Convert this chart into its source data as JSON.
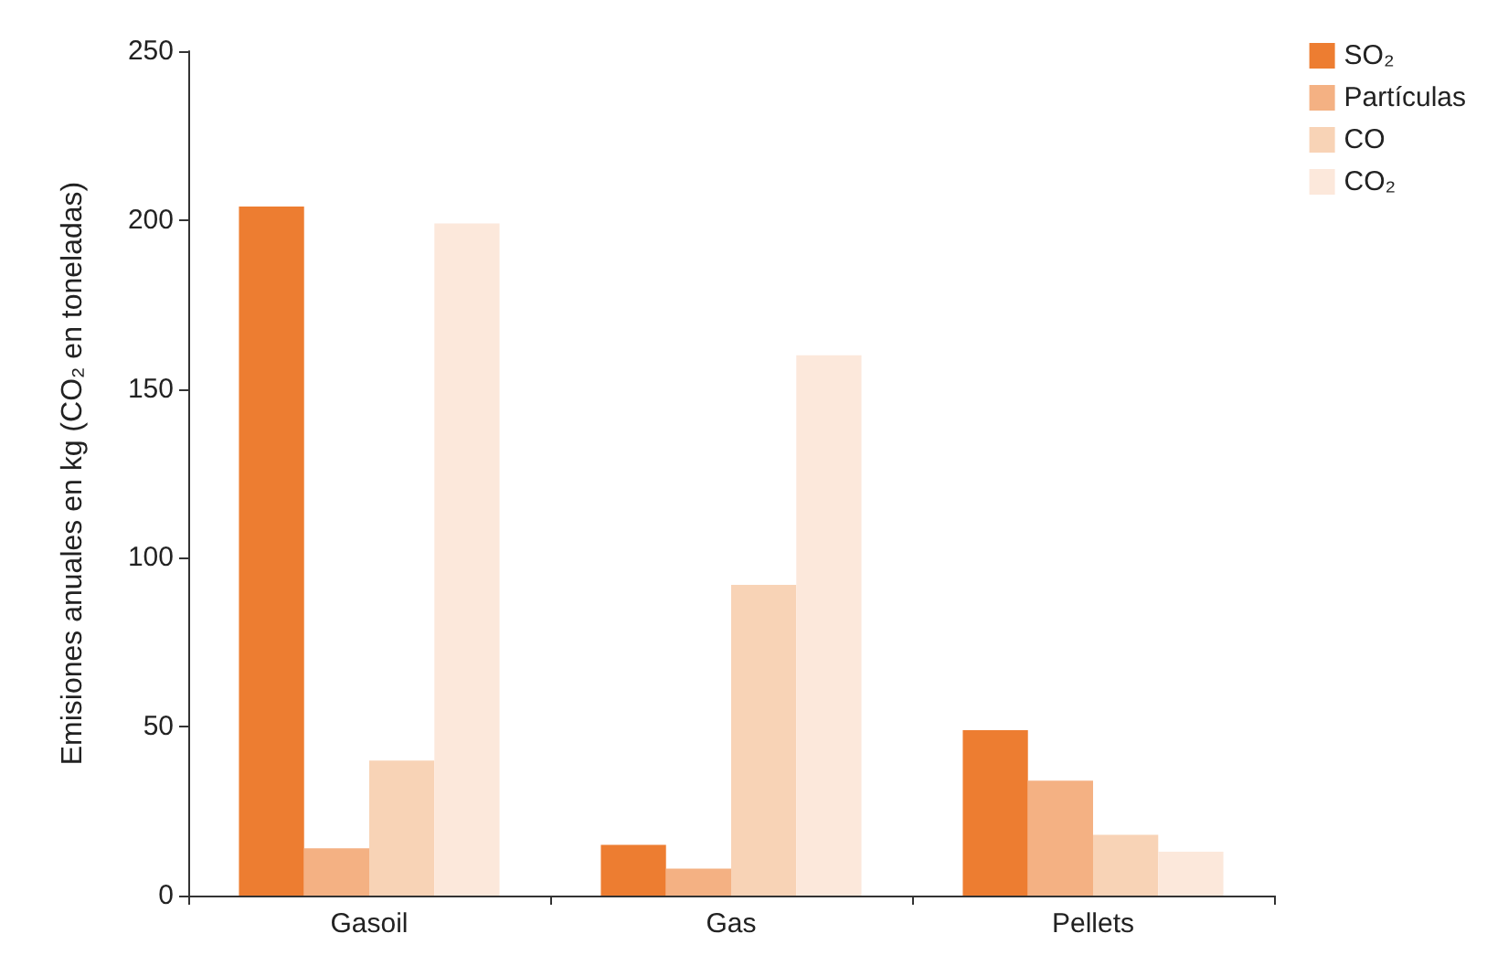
{
  "chart_data": {
    "type": "bar",
    "ylabel": "Emisiones anuales en kg (CO₂ en toneladas)",
    "categories": [
      "Gasoil",
      "Gas",
      "Pellets"
    ],
    "series": [
      {
        "name": "SO₂",
        "color": "#ed7d31",
        "values": [
          204,
          15,
          49
        ]
      },
      {
        "name": "Partículas",
        "color": "#f4b183",
        "values": [
          14,
          8,
          34
        ]
      },
      {
        "name": "CO",
        "color": "#f8d3b6",
        "values": [
          40,
          92,
          18
        ]
      },
      {
        "name": "CO₂",
        "color": "#fce8db",
        "values": [
          199,
          160,
          13
        ]
      }
    ],
    "ylim": [
      0,
      250
    ],
    "yticks": [
      0,
      50,
      100,
      150,
      200,
      250
    ],
    "grid": false,
    "legend": "top right"
  }
}
